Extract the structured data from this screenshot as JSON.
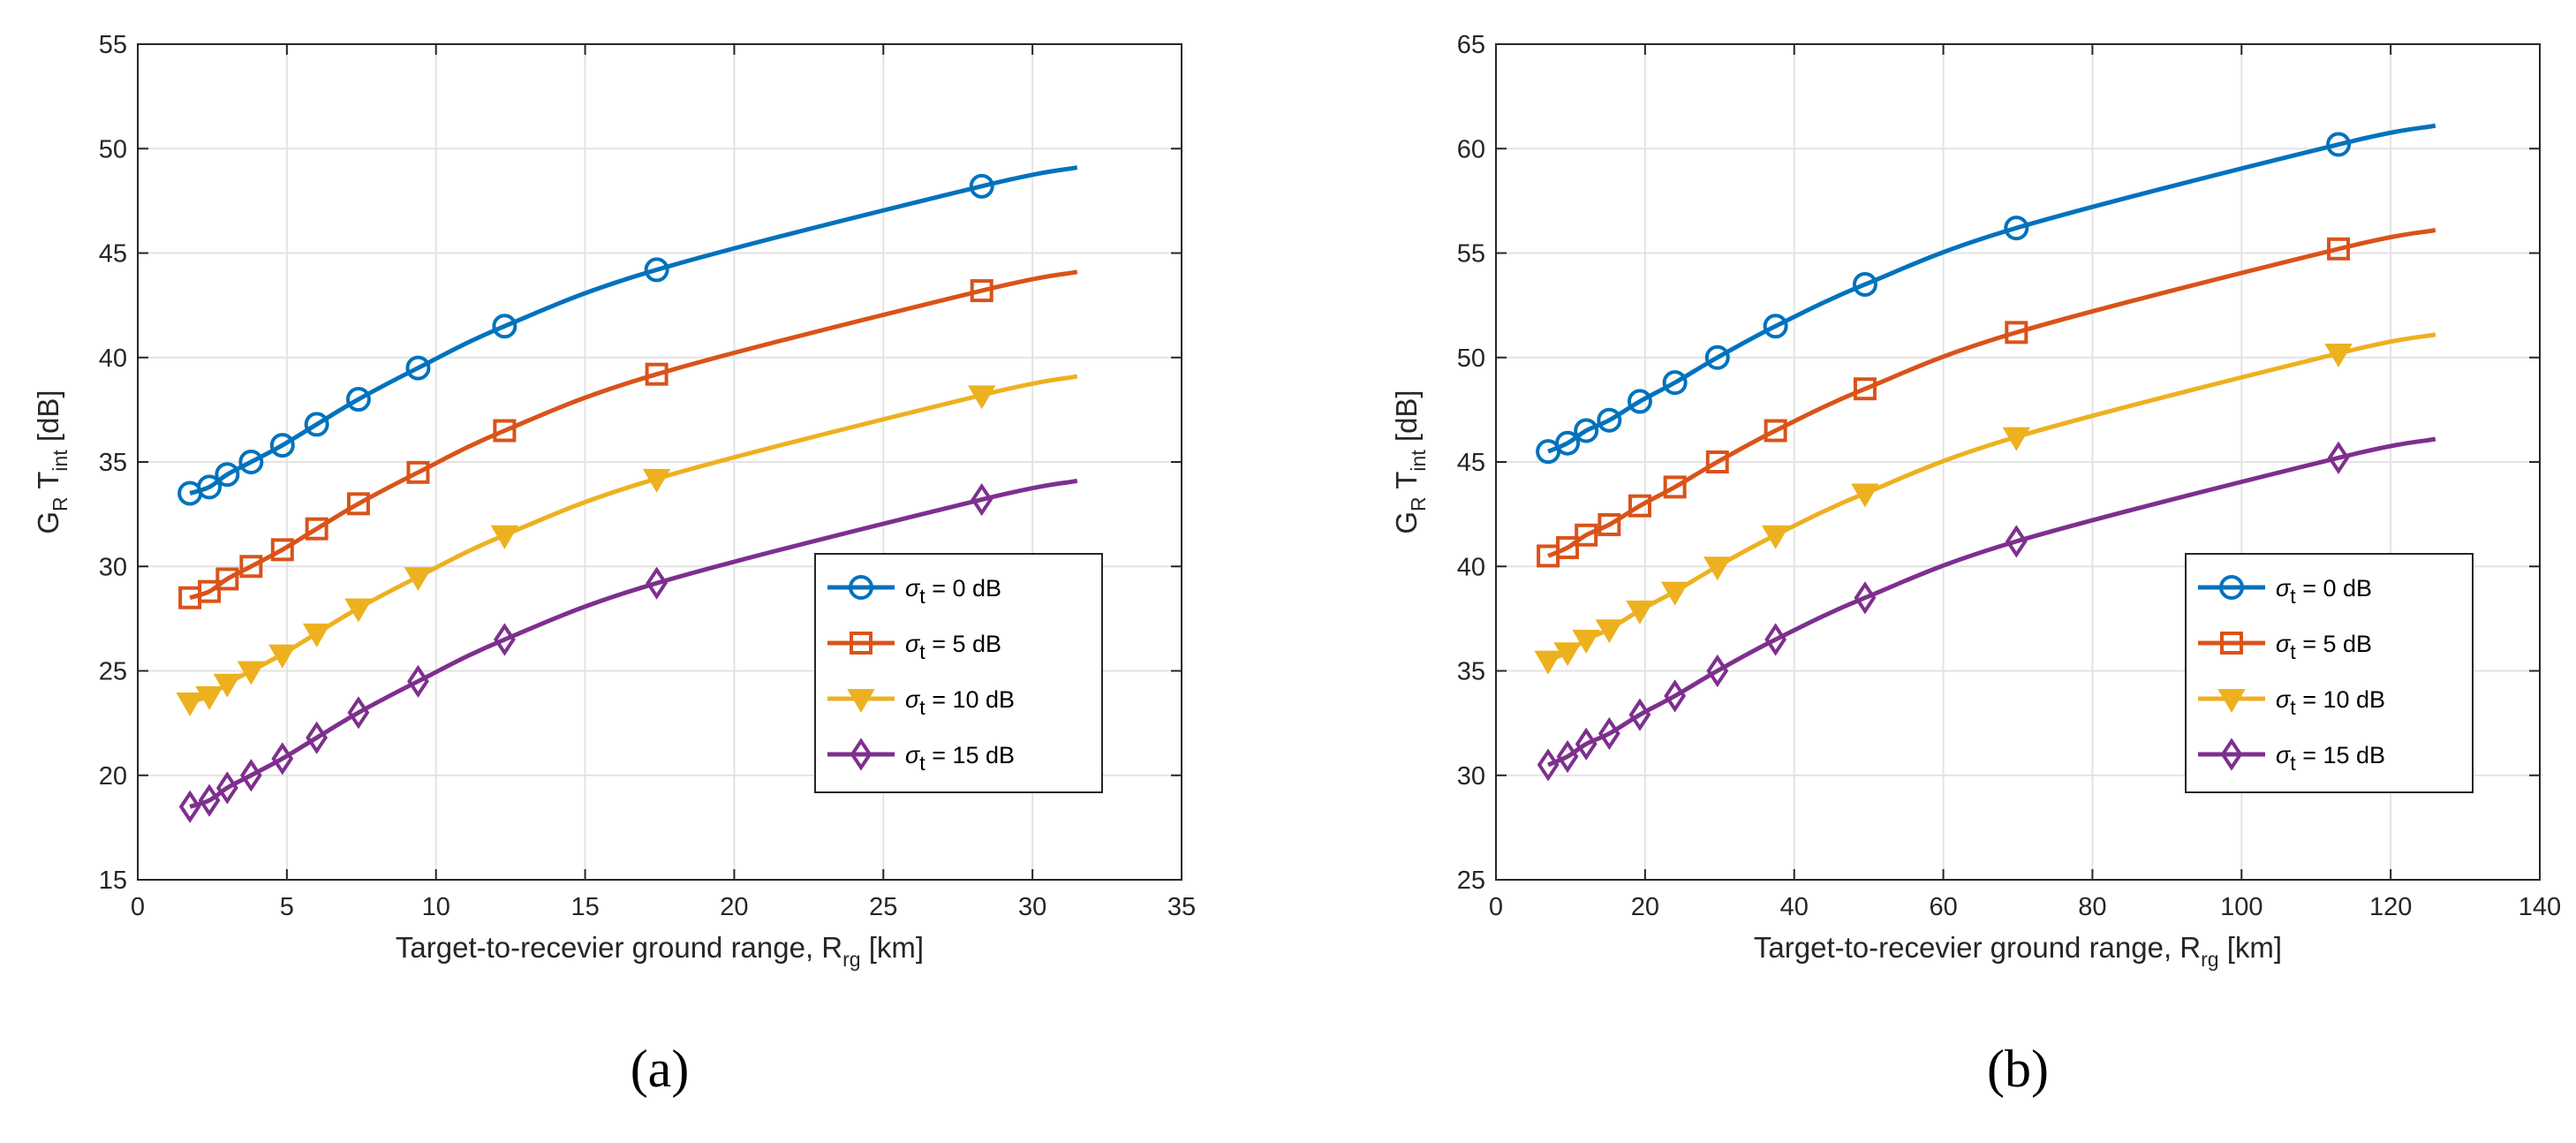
{
  "chart_data": [
    {
      "type": "line",
      "panel_label": "(a)",
      "xlabel": "Target-to-recevier ground range, R",
      "xlabel_sub": "rg",
      "xlabel_unit": " [km]",
      "ylabel_parts": {
        "g": "G",
        "r": "R",
        "t": "T",
        "int": "int",
        "unit": " [dB]"
      },
      "xlim": [
        0,
        35
      ],
      "ylim": [
        15,
        55
      ],
      "xticks": [
        0,
        5,
        10,
        15,
        20,
        25,
        30,
        35
      ],
      "yticks": [
        15,
        20,
        25,
        30,
        35,
        40,
        45,
        50,
        55
      ],
      "grid": true,
      "legend_position": "lower-right",
      "legend_prefix": "σ",
      "legend_sub": "t",
      "series": [
        {
          "name": "= 0 dB",
          "color": "#0072BD",
          "marker": "circle",
          "offset": 0,
          "x": [
            1.75,
            2.4,
            3.0,
            3.8,
            4.85,
            6.0,
            7.4,
            9.4,
            12.3,
            17.4,
            28.3,
            31.5
          ],
          "y": [
            33.5,
            33.8,
            34.4,
            35.0,
            35.8,
            36.8,
            38.0,
            39.5,
            41.5,
            44.2,
            48.2,
            49.1
          ],
          "marker_x": [
            1.75,
            2.4,
            3.0,
            3.8,
            4.85,
            6.0,
            7.4,
            9.4,
            12.3,
            17.4,
            28.3
          ],
          "marker_y": [
            33.5,
            33.8,
            34.4,
            35.0,
            35.8,
            36.8,
            38.0,
            39.5,
            41.5,
            44.2,
            48.2
          ]
        },
        {
          "name": "= 5 dB",
          "color": "#D95319",
          "marker": "square",
          "x": [
            1.75,
            2.4,
            3.0,
            3.8,
            4.85,
            6.0,
            7.4,
            9.4,
            12.3,
            17.4,
            28.3,
            31.5
          ],
          "y": [
            28.5,
            28.8,
            29.4,
            30.0,
            30.8,
            31.8,
            33.0,
            34.5,
            36.5,
            39.2,
            43.2,
            44.1
          ],
          "marker_x": [
            1.75,
            2.4,
            3.0,
            3.8,
            4.85,
            6.0,
            7.4,
            9.4,
            12.3,
            17.4,
            28.3
          ],
          "marker_y": [
            28.5,
            28.8,
            29.4,
            30.0,
            30.8,
            31.8,
            33.0,
            34.5,
            36.5,
            39.2,
            43.2
          ]
        },
        {
          "name": "= 10 dB",
          "color": "#EDB120",
          "marker": "triangle-down",
          "x": [
            1.75,
            2.4,
            3.0,
            3.8,
            4.85,
            6.0,
            7.4,
            9.4,
            12.3,
            17.4,
            28.3,
            31.5
          ],
          "y": [
            23.5,
            23.8,
            24.4,
            25.0,
            25.8,
            26.8,
            28.0,
            29.5,
            31.5,
            34.2,
            38.2,
            39.1
          ],
          "marker_x": [
            1.75,
            2.4,
            3.0,
            3.8,
            4.85,
            6.0,
            7.4,
            9.4,
            12.3,
            17.4,
            28.3
          ],
          "marker_y": [
            23.5,
            23.8,
            24.4,
            25.0,
            25.8,
            26.8,
            28.0,
            29.5,
            31.5,
            34.2,
            38.2
          ]
        },
        {
          "name": "= 15 dB",
          "color": "#7E2F8E",
          "marker": "diamond",
          "x": [
            1.75,
            2.4,
            3.0,
            3.8,
            4.85,
            6.0,
            7.4,
            9.4,
            12.3,
            17.4,
            28.3,
            31.5
          ],
          "y": [
            18.5,
            18.8,
            19.4,
            20.0,
            20.8,
            21.8,
            23.0,
            24.5,
            26.5,
            29.2,
            33.2,
            34.1
          ],
          "marker_x": [
            1.75,
            2.4,
            3.0,
            3.8,
            4.85,
            6.0,
            7.4,
            9.4,
            12.3,
            17.4,
            28.3
          ],
          "marker_y": [
            18.5,
            18.8,
            19.4,
            20.0,
            20.8,
            21.8,
            23.0,
            24.5,
            26.5,
            29.2,
            33.2
          ]
        }
      ]
    },
    {
      "type": "line",
      "panel_label": "(b)",
      "xlabel": "Target-to-recevier ground range, R",
      "xlabel_sub": "rg",
      "xlabel_unit": " [km]",
      "ylabel_parts": {
        "g": "G",
        "r": "R",
        "t": "T",
        "int": "int",
        "unit": " [dB]"
      },
      "xlim": [
        0,
        140
      ],
      "ylim": [
        25,
        65
      ],
      "xticks": [
        0,
        20,
        40,
        60,
        80,
        100,
        120,
        140
      ],
      "yticks": [
        25,
        30,
        35,
        40,
        45,
        50,
        55,
        60,
        65
      ],
      "grid": true,
      "legend_position": "lower-right",
      "legend_prefix": "σ",
      "legend_sub": "t",
      "series": [
        {
          "name": "= 0 dB",
          "color": "#0072BD",
          "marker": "circle",
          "x": [
            7,
            9.6,
            12.1,
            15.2,
            19.3,
            24,
            29.7,
            37.5,
            49.5,
            69.8,
            113,
            126
          ],
          "y": [
            45.5,
            45.9,
            46.5,
            47.0,
            47.9,
            48.8,
            50.0,
            51.5,
            53.5,
            56.2,
            60.2,
            61.1
          ],
          "marker_x": [
            7,
            9.6,
            12.1,
            15.2,
            19.3,
            24,
            29.7,
            37.5,
            49.5,
            69.8,
            113
          ],
          "marker_y": [
            45.5,
            45.9,
            46.5,
            47.0,
            47.9,
            48.8,
            50.0,
            51.5,
            53.5,
            56.2,
            60.2
          ]
        },
        {
          "name": "= 5 dB",
          "color": "#D95319",
          "marker": "square",
          "x": [
            7,
            9.6,
            12.1,
            15.2,
            19.3,
            24,
            29.7,
            37.5,
            49.5,
            69.8,
            113,
            126
          ],
          "y": [
            40.5,
            40.9,
            41.5,
            42.0,
            42.9,
            43.8,
            45.0,
            46.5,
            48.5,
            51.2,
            55.2,
            56.1
          ],
          "marker_x": [
            7,
            9.6,
            12.1,
            15.2,
            19.3,
            24,
            29.7,
            37.5,
            49.5,
            69.8,
            113
          ],
          "marker_y": [
            40.5,
            40.9,
            41.5,
            42.0,
            42.9,
            43.8,
            45.0,
            46.5,
            48.5,
            51.2,
            55.2
          ]
        },
        {
          "name": "= 10 dB",
          "color": "#EDB120",
          "marker": "triangle-down",
          "x": [
            7,
            9.6,
            12.1,
            15.2,
            19.3,
            24,
            29.7,
            37.5,
            49.5,
            69.8,
            113,
            126
          ],
          "y": [
            35.5,
            35.9,
            36.5,
            37.0,
            37.9,
            38.8,
            40.0,
            41.5,
            43.5,
            46.2,
            50.2,
            51.1
          ],
          "marker_x": [
            7,
            9.6,
            12.1,
            15.2,
            19.3,
            24,
            29.7,
            37.5,
            49.5,
            69.8,
            113
          ],
          "marker_y": [
            35.5,
            35.9,
            36.5,
            37.0,
            37.9,
            38.8,
            40.0,
            41.5,
            43.5,
            46.2,
            50.2
          ]
        },
        {
          "name": "= 15 dB",
          "color": "#7E2F8E",
          "marker": "diamond",
          "x": [
            7,
            9.6,
            12.1,
            15.2,
            19.3,
            24,
            29.7,
            37.5,
            49.5,
            69.8,
            113,
            126
          ],
          "y": [
            30.5,
            30.9,
            31.5,
            32.0,
            32.9,
            33.8,
            35.0,
            36.5,
            38.5,
            41.2,
            45.2,
            46.1
          ],
          "marker_x": [
            7,
            9.6,
            12.1,
            15.2,
            19.3,
            24,
            29.7,
            37.5,
            49.5,
            69.8,
            113
          ],
          "marker_y": [
            30.5,
            30.9,
            31.5,
            32.0,
            32.9,
            33.8,
            35.0,
            36.5,
            38.5,
            41.2,
            45.2
          ]
        }
      ]
    }
  ]
}
